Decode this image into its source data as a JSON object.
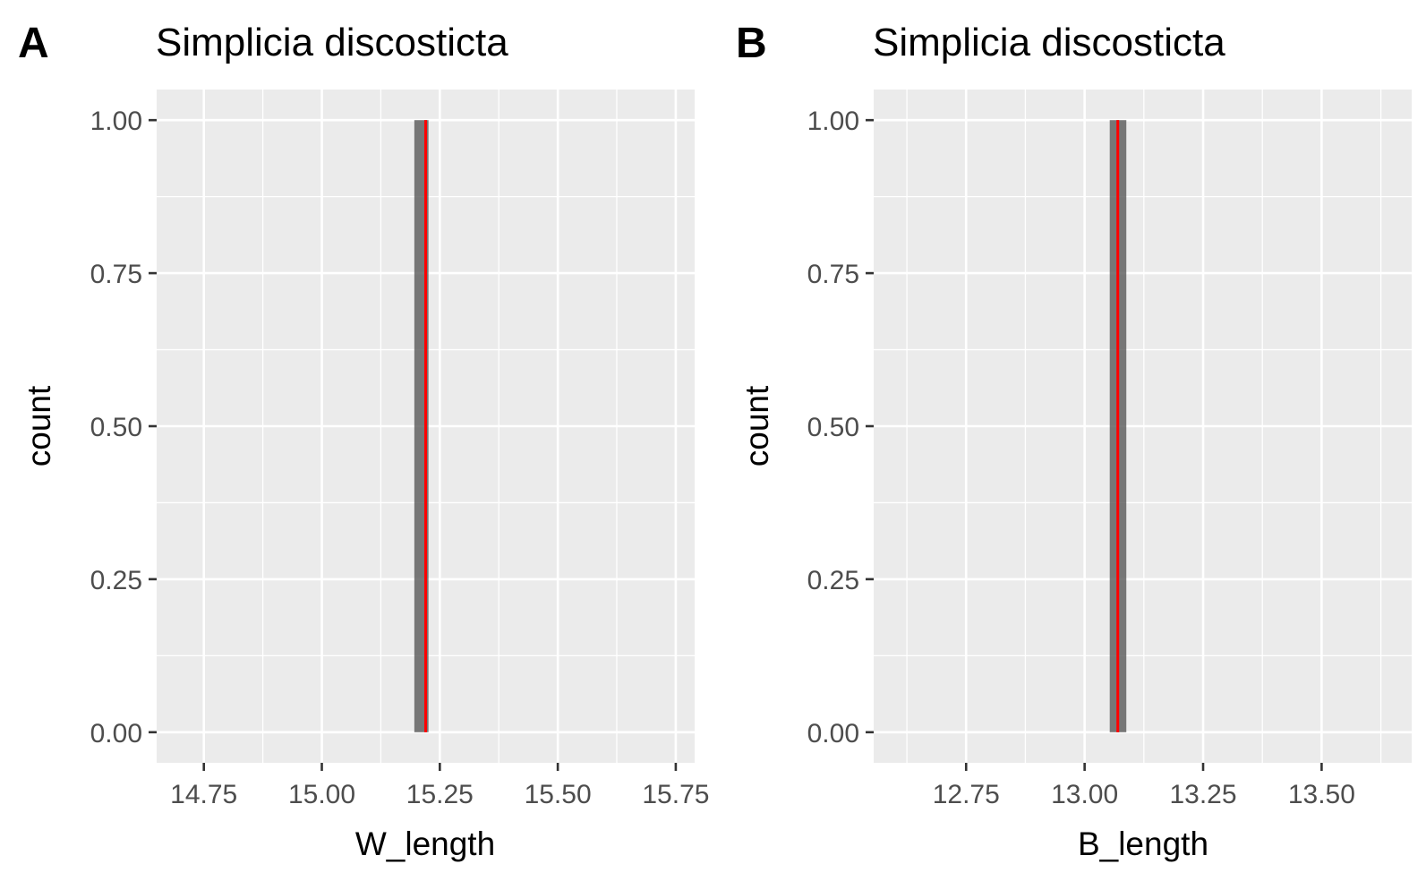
{
  "chart_data": [
    {
      "type": "bar",
      "panel_label": "A",
      "title": "Simplicia discosticta",
      "xlabel": "W_length",
      "ylabel": "count",
      "xlim": [
        14.65,
        15.79
      ],
      "ylim": [
        -0.05,
        1.05
      ],
      "x_ticks": [
        14.75,
        15.0,
        15.25,
        15.5,
        15.75
      ],
      "x_tick_labels": [
        "14.75",
        "15.00",
        "15.25",
        "15.50",
        "15.75"
      ],
      "y_ticks": [
        0,
        0.25,
        0.5,
        0.75,
        1.0
      ],
      "y_tick_labels": [
        "0.00",
        "0.25",
        "0.50",
        "0.75",
        "1.00"
      ],
      "bins": [
        {
          "x0": 15.196,
          "x1": 15.226,
          "count": 1
        }
      ],
      "reference_line": {
        "x": 15.22,
        "color": "#ff0000"
      },
      "grid": true,
      "colors": {
        "panel_bg": "#ebebeb",
        "grid": "#ffffff",
        "bar": "#595959",
        "bar_opacity": 0.8
      }
    },
    {
      "type": "bar",
      "panel_label": "B",
      "title": "Simplicia discosticta",
      "xlabel": "B_length",
      "ylabel": "count",
      "xlim": [
        12.555,
        13.69
      ],
      "ylim": [
        -0.05,
        1.05
      ],
      "x_ticks": [
        12.75,
        13.0,
        13.25,
        13.5
      ],
      "x_tick_labels": [
        "12.75",
        "13.00",
        "13.25",
        "13.50"
      ],
      "y_ticks": [
        0,
        0.25,
        0.5,
        0.75,
        1.0
      ],
      "y_tick_labels": [
        "0.00",
        "0.25",
        "0.50",
        "0.75",
        "1.00"
      ],
      "bins": [
        {
          "x0": 13.053,
          "x1": 13.088,
          "count": 1
        }
      ],
      "reference_line": {
        "x": 13.07,
        "color": "#ff0000"
      },
      "grid": true,
      "colors": {
        "panel_bg": "#ebebeb",
        "grid": "#ffffff",
        "bar": "#595959",
        "bar_opacity": 0.8
      }
    }
  ]
}
